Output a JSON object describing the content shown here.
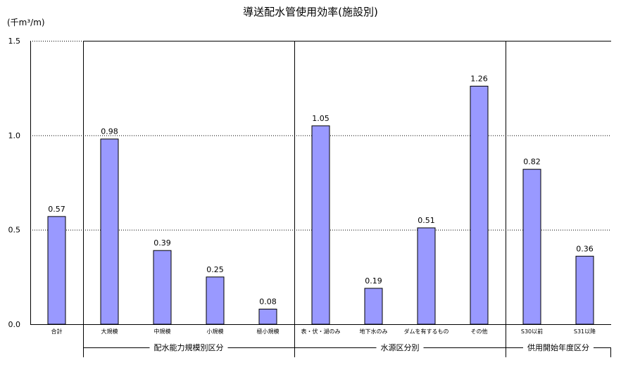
{
  "chart_data": {
    "type": "bar",
    "title": "導送配水管使用効率(施設別)",
    "ylabel": "(千m³/m)",
    "ylim": [
      0,
      1.5
    ],
    "yticks": [
      {
        "value": 0,
        "label": "0.0"
      },
      {
        "value": 0.5,
        "label": "0.5"
      },
      {
        "value": 1.0,
        "label": "1.0"
      },
      {
        "value": 1.5,
        "label": "1.5"
      }
    ],
    "grid": "horizontal-dotted",
    "bar_color": "#9999ff",
    "categories": [
      "合計",
      "大規模",
      "中規模",
      "小規模",
      "極小規模",
      "表・伏・湖のみ",
      "地下水のみ",
      "ダムを有するもの",
      "その他",
      "S30以前",
      "S31以降"
    ],
    "values": [
      0.57,
      0.98,
      0.39,
      0.25,
      0.08,
      1.05,
      0.19,
      0.51,
      1.26,
      0.82,
      0.36
    ],
    "value_labels": [
      "0.57",
      "0.98",
      "0.39",
      "0.25",
      "0.08",
      "1.05",
      "0.19",
      "0.51",
      "1.26",
      "0.82",
      "0.36"
    ],
    "groups": [
      {
        "label": "配水能力規模別区分",
        "start": 1,
        "end": 4
      },
      {
        "label": "水源区分別",
        "start": 5,
        "end": 8
      },
      {
        "label": "供用開始年度区分",
        "start": 9,
        "end": 10
      }
    ]
  }
}
